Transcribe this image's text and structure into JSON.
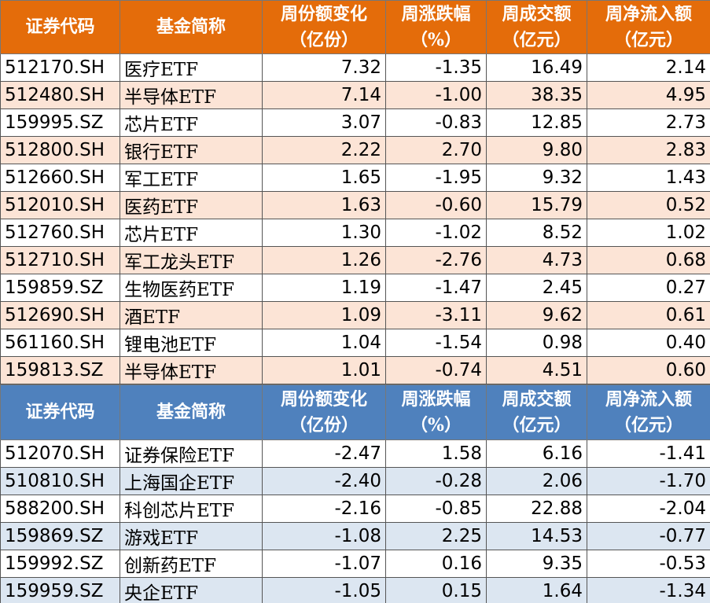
{
  "tables": [
    {
      "header": [
        [
          "证券代码"
        ],
        [
          "基金简称"
        ],
        [
          "周份额变化",
          "（亿份）"
        ],
        [
          "周涨跌幅",
          "（%）"
        ],
        [
          "周成交额",
          "（亿元）"
        ],
        [
          "周净流入额",
          "（亿元）"
        ]
      ],
      "rows": [
        [
          "512170.SH",
          "医疗ETF",
          "7.32",
          "-1.35",
          "16.49",
          "2.14"
        ],
        [
          "512480.SH",
          "半导体ETF",
          "7.14",
          "-1.00",
          "38.35",
          "4.95"
        ],
        [
          "159995.SZ",
          "芯片ETF",
          "3.07",
          "-0.83",
          "12.85",
          "2.73"
        ],
        [
          "512800.SH",
          "银行ETF",
          "2.22",
          "2.70",
          "9.80",
          "2.83"
        ],
        [
          "512660.SH",
          "军工ETF",
          "1.65",
          "-1.95",
          "9.32",
          "1.43"
        ],
        [
          "512010.SH",
          "医药ETF",
          "1.63",
          "-0.60",
          "15.79",
          "0.52"
        ],
        [
          "512760.SH",
          "芯片ETF",
          "1.30",
          "-1.02",
          "8.52",
          "1.02"
        ],
        [
          "512710.SH",
          "军工龙头ETF",
          "1.26",
          "-2.76",
          "4.73",
          "0.68"
        ],
        [
          "159859.SZ",
          "生物医药ETF",
          "1.19",
          "-1.47",
          "2.45",
          "0.27"
        ],
        [
          "512690.SH",
          "酒ETF",
          "1.09",
          "-3.11",
          "9.62",
          "0.61"
        ],
        [
          "561160.SH",
          "锂电池ETF",
          "1.04",
          "-1.54",
          "0.98",
          "0.40"
        ],
        [
          "159813.SZ",
          "半导体ETF",
          "1.01",
          "-0.74",
          "4.51",
          "0.60"
        ]
      ]
    },
    {
      "header": [
        [
          "证券代码"
        ],
        [
          "基金简称"
        ],
        [
          "周份额变化",
          "（亿份）"
        ],
        [
          "周涨跌幅",
          "（%）"
        ],
        [
          "周成交额",
          "（亿元）"
        ],
        [
          "周净流入额",
          "（亿元）"
        ]
      ],
      "rows": [
        [
          "512070.SH",
          "证券保险ETF",
          "-2.47",
          "1.58",
          "6.16",
          "-1.41"
        ],
        [
          "510810.SH",
          "上海国企ETF",
          "-2.40",
          "-0.28",
          "2.06",
          "-1.70"
        ],
        [
          "588200.SH",
          "科创芯片ETF",
          "-2.16",
          "-0.85",
          "22.88",
          "-2.04"
        ],
        [
          "159869.SZ",
          "游戏ETF",
          "-1.08",
          "2.25",
          "14.53",
          "-0.77"
        ],
        [
          "159992.SZ",
          "创新药ETF",
          "-1.07",
          "0.16",
          "9.35",
          "-0.53"
        ],
        [
          "159959.SZ",
          "央企ETF",
          "-1.05",
          "0.15",
          "1.64",
          "-1.34"
        ]
      ]
    }
  ]
}
